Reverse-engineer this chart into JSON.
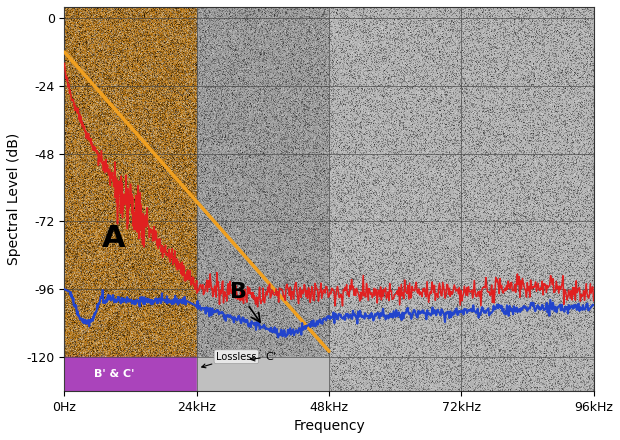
{
  "title": "",
  "xlabel": "Frequency",
  "ylabel": "Spectral Level (dB)",
  "xlim": [
    0,
    96000
  ],
  "ylim": [
    -132,
    4
  ],
  "xticks": [
    0,
    24000,
    48000,
    72000,
    96000
  ],
  "xticklabels": [
    "0Hz",
    "24kHz",
    "48kHz",
    "72kHz",
    "96kHz"
  ],
  "yticks": [
    0,
    -24,
    -48,
    -72,
    -96,
    -120
  ],
  "yticklabels": [
    "0",
    "-24",
    "-48",
    "-72",
    "-96",
    "-120"
  ],
  "region_A_base": "#b87818",
  "region_B_base": "#a0a0a0",
  "region_C_base": "#b8b8b8",
  "region_BC_color": "#aa44bb",
  "orange_line_x": [
    0,
    48000
  ],
  "orange_line_y": [
    -12,
    -118
  ],
  "orange_line_color": "#f0a020",
  "red_line_color": "#e02020",
  "blue_line_color": "#2244cc",
  "label_A": "A",
  "label_B": "B",
  "label_BC": "B' & C'",
  "label_lossless": "Lossless",
  "label_C_prime": "C'",
  "background_color": "#ffffff",
  "grid_color": "#444444",
  "figsize": [
    6.2,
    4.4
  ],
  "dpi": 100
}
